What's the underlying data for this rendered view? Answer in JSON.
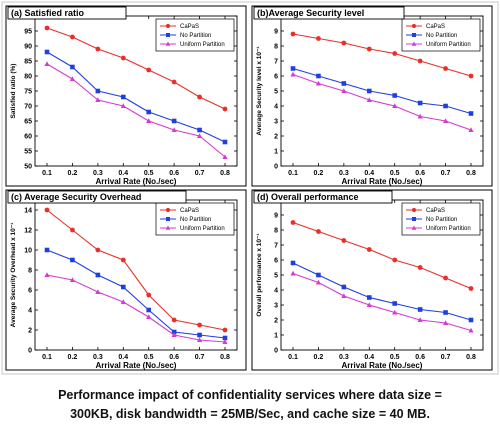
{
  "chart_data": [
    {
      "type": "line",
      "title": "(a) Satisfied ratio",
      "xlabel": "Arrival Rate (No./sec)",
      "ylabel": "Satisfied ratio (%)",
      "x": [
        0.1,
        0.2,
        0.3,
        0.4,
        0.5,
        0.6,
        0.7,
        0.8
      ],
      "xticks": [
        "0.1",
        "0.2",
        "0.3",
        "0.4",
        "0.5",
        "0.6",
        "0.7",
        "0.8"
      ],
      "ylim": [
        50,
        100
      ],
      "yticks": [
        "50",
        "55",
        "60",
        "65",
        "70",
        "75",
        "80",
        "85",
        "90",
        "95",
        "100"
      ],
      "legend_position": "top-right",
      "series": [
        {
          "name": "CaPaS",
          "color": "#e8302a",
          "marker": "circle",
          "values": [
            96,
            93,
            89,
            86,
            82,
            78,
            73,
            69
          ]
        },
        {
          "name": "No Partition",
          "color": "#1f3fe0",
          "marker": "square",
          "values": [
            88,
            83,
            75,
            73,
            68,
            65,
            62,
            58
          ]
        },
        {
          "name": "Uniform Partition",
          "color": "#d63bd0",
          "marker": "triangle",
          "values": [
            84,
            79,
            72,
            70,
            65,
            62,
            60,
            53
          ]
        }
      ]
    },
    {
      "type": "line",
      "title": "(b)Average Security level",
      "xlabel": "Arrival Rate (No./sec)",
      "ylabel": "Average Security level x 10⁻¹",
      "x": [
        0.1,
        0.2,
        0.3,
        0.4,
        0.5,
        0.6,
        0.7,
        0.8
      ],
      "xticks": [
        "0.1",
        "0.2",
        "0.3",
        "0.4",
        "0.5",
        "0.6",
        "0.7",
        "0.8"
      ],
      "ylim": [
        0,
        10
      ],
      "yticks": [
        "0",
        "1",
        "2",
        "3",
        "4",
        "5",
        "6",
        "7",
        "8",
        "9",
        "10"
      ],
      "legend_position": "top-right",
      "series": [
        {
          "name": "CaPaS",
          "color": "#e8302a",
          "marker": "circle",
          "values": [
            8.8,
            8.5,
            8.2,
            7.8,
            7.5,
            7.0,
            6.5,
            6.0
          ]
        },
        {
          "name": "No Partition",
          "color": "#1f3fe0",
          "marker": "square",
          "values": [
            6.5,
            6.0,
            5.5,
            5.0,
            4.7,
            4.2,
            4.0,
            3.5
          ]
        },
        {
          "name": "Uniform Partition",
          "color": "#d63bd0",
          "marker": "triangle",
          "values": [
            6.1,
            5.5,
            5.0,
            4.4,
            4.0,
            3.3,
            3.0,
            2.4
          ]
        }
      ]
    },
    {
      "type": "line",
      "title": "(c) Average Security Overhead",
      "xlabel": "Arrival Rate (No./sec)",
      "ylabel": "Average Security Overhead x 10⁻¹",
      "x": [
        0.1,
        0.2,
        0.3,
        0.4,
        0.5,
        0.6,
        0.7,
        0.8
      ],
      "xticks": [
        "0.1",
        "0.2",
        "0.3",
        "0.4",
        "0.5",
        "0.6",
        "0.7",
        "0.8"
      ],
      "ylim": [
        0,
        15
      ],
      "yticks": [
        "0",
        "2",
        "4",
        "6",
        "8",
        "10",
        "12",
        "14"
      ],
      "legend_position": "top-right",
      "series": [
        {
          "name": "CaPaS",
          "color": "#e8302a",
          "marker": "circle",
          "values": [
            14,
            12,
            10,
            9,
            5.5,
            3,
            2.5,
            2
          ]
        },
        {
          "name": "No Partition",
          "color": "#1f3fe0",
          "marker": "square",
          "values": [
            10,
            9,
            7.5,
            6.3,
            4,
            1.8,
            1.5,
            1.2
          ]
        },
        {
          "name": "Uniform Partition",
          "color": "#d63bd0",
          "marker": "triangle",
          "values": [
            7.5,
            7,
            5.8,
            4.8,
            3.3,
            1.5,
            1,
            0.8
          ]
        }
      ]
    },
    {
      "type": "line",
      "title": "(d) Overall performance",
      "xlabel": "Arrival Rate (No./sec)",
      "ylabel": "Overall performance x 10⁻¹",
      "x": [
        0.1,
        0.2,
        0.3,
        0.4,
        0.5,
        0.6,
        0.7,
        0.8
      ],
      "xticks": [
        "0.1",
        "0.2",
        "0.3",
        "0.4",
        "0.5",
        "0.6",
        "0.7",
        "0.8"
      ],
      "ylim": [
        0,
        10
      ],
      "yticks": [
        "0",
        "1",
        "2",
        "3",
        "4",
        "5",
        "6",
        "7",
        "8",
        "9",
        "10"
      ],
      "legend_position": "top-right",
      "series": [
        {
          "name": "CaPaS",
          "color": "#e8302a",
          "marker": "circle",
          "values": [
            8.5,
            7.9,
            7.3,
            6.7,
            6.0,
            5.5,
            4.8,
            4.1
          ]
        },
        {
          "name": "No Partition",
          "color": "#1f3fe0",
          "marker": "square",
          "values": [
            5.8,
            5.0,
            4.2,
            3.5,
            3.1,
            2.7,
            2.5,
            2.0
          ]
        },
        {
          "name": "Uniform Partition",
          "color": "#d63bd0",
          "marker": "triangle",
          "values": [
            5.1,
            4.5,
            3.6,
            3.0,
            2.5,
            2.0,
            1.8,
            1.3
          ]
        }
      ]
    }
  ],
  "caption": {
    "line1": "Performance impact of confidentiality services where data size    =",
    "line2": "300KB, disk bandwidth = 25MB/Sec, and cache size = 40 MB."
  }
}
